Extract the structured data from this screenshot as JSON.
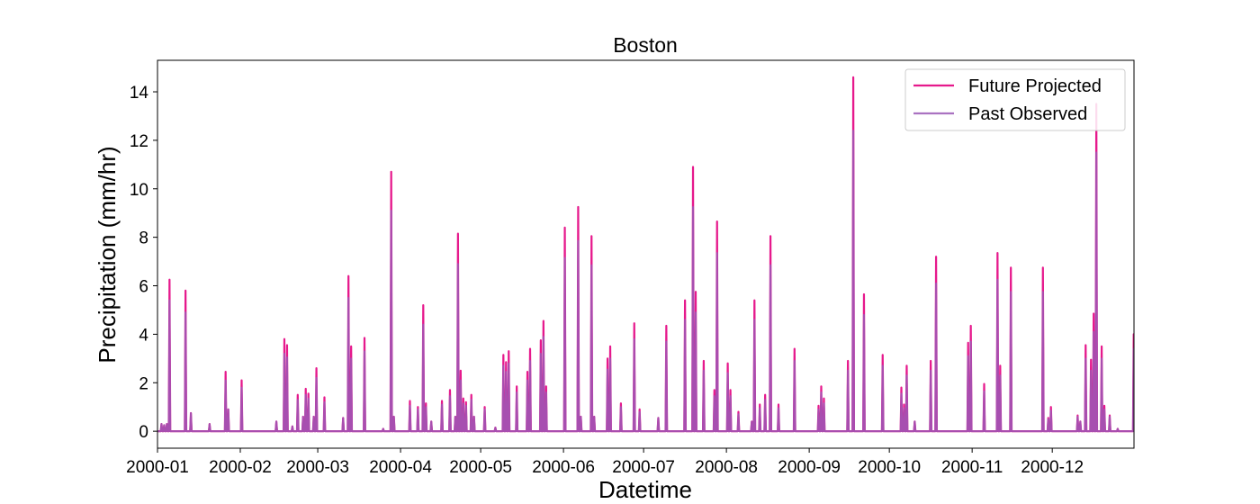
{
  "chart_data": {
    "type": "line",
    "title": "Boston",
    "xlabel": "Datetime",
    "ylabel": "Precipitation (mm/hr)",
    "x_ticks": [
      "2000-01",
      "2000-02",
      "2000-03",
      "2000-04",
      "2000-05",
      "2000-06",
      "2000-07",
      "2000-08",
      "2000-09",
      "2000-10",
      "2000-11",
      "2000-12"
    ],
    "xlim": [
      "2000-01-01",
      "2000-12-31"
    ],
    "y_ticks": [
      0,
      2,
      4,
      6,
      8,
      10,
      12,
      14
    ],
    "ylim": [
      -0.7,
      15.3
    ],
    "grid": false,
    "legend_position": "top-right",
    "series": [
      {
        "name": "Future Projected",
        "color": "#e6198c",
        "points": [
          [
            "2000-01-02",
            0.3
          ],
          [
            "2000-01-03",
            0.25
          ],
          [
            "2000-01-04",
            0.3
          ],
          [
            "2000-01-05",
            6.25
          ],
          [
            "2000-01-11",
            5.8
          ],
          [
            "2000-01-13",
            0.75
          ],
          [
            "2000-01-20",
            0.3
          ],
          [
            "2000-01-26",
            2.45
          ],
          [
            "2000-01-27",
            0.9
          ],
          [
            "2000-02-01",
            2.1
          ],
          [
            "2000-02-14",
            0.4
          ],
          [
            "2000-02-17",
            3.8
          ],
          [
            "2000-02-18",
            3.55
          ],
          [
            "2000-02-20",
            0.2
          ],
          [
            "2000-02-22",
            1.5
          ],
          [
            "2000-02-24",
            0.6
          ],
          [
            "2000-02-25",
            1.75
          ],
          [
            "2000-02-26",
            1.55
          ],
          [
            "2000-02-28",
            0.6
          ],
          [
            "2000-02-29",
            2.6
          ],
          [
            "2000-03-03",
            1.4
          ],
          [
            "2000-03-10",
            0.55
          ],
          [
            "2000-03-12",
            6.4
          ],
          [
            "2000-03-13",
            3.5
          ],
          [
            "2000-03-18",
            3.85
          ],
          [
            "2000-03-25",
            0.1
          ],
          [
            "2000-03-28",
            10.7
          ],
          [
            "2000-03-29",
            0.6
          ],
          [
            "2000-04-04",
            1.25
          ],
          [
            "2000-04-07",
            1.0
          ],
          [
            "2000-04-09",
            5.2
          ],
          [
            "2000-04-10",
            1.15
          ],
          [
            "2000-04-12",
            0.4
          ],
          [
            "2000-04-16",
            1.25
          ],
          [
            "2000-04-19",
            1.7
          ],
          [
            "2000-04-21",
            0.6
          ],
          [
            "2000-04-22",
            8.15
          ],
          [
            "2000-04-23",
            2.5
          ],
          [
            "2000-04-24",
            1.35
          ],
          [
            "2000-04-25",
            1.2
          ],
          [
            "2000-04-27",
            1.5
          ],
          [
            "2000-04-28",
            0.6
          ],
          [
            "2000-05-02",
            1.0
          ],
          [
            "2000-05-06",
            0.15
          ],
          [
            "2000-05-09",
            3.15
          ],
          [
            "2000-05-10",
            2.85
          ],
          [
            "2000-05-11",
            3.3
          ],
          [
            "2000-05-14",
            1.85
          ],
          [
            "2000-05-18",
            2.45
          ],
          [
            "2000-05-19",
            3.4
          ],
          [
            "2000-05-23",
            3.75
          ],
          [
            "2000-05-24",
            4.55
          ],
          [
            "2000-05-25",
            1.85
          ],
          [
            "2000-06-01",
            8.4
          ],
          [
            "2000-06-06",
            9.25
          ],
          [
            "2000-06-07",
            0.6
          ],
          [
            "2000-06-11",
            8.05
          ],
          [
            "2000-06-12",
            0.6
          ],
          [
            "2000-06-17",
            3.0
          ],
          [
            "2000-06-18",
            3.5
          ],
          [
            "2000-06-22",
            1.15
          ],
          [
            "2000-06-27",
            4.45
          ],
          [
            "2000-06-29",
            0.9
          ],
          [
            "2000-07-06",
            0.55
          ],
          [
            "2000-07-09",
            4.35
          ],
          [
            "2000-07-16",
            5.4
          ],
          [
            "2000-07-19",
            10.9
          ],
          [
            "2000-07-20",
            5.75
          ],
          [
            "2000-07-23",
            2.9
          ],
          [
            "2000-07-27",
            1.7
          ],
          [
            "2000-07-28",
            8.65
          ],
          [
            "2000-08-01",
            2.8
          ],
          [
            "2000-08-02",
            1.7
          ],
          [
            "2000-08-05",
            0.8
          ],
          [
            "2000-08-10",
            0.4
          ],
          [
            "2000-08-11",
            5.4
          ],
          [
            "2000-08-13",
            1.1
          ],
          [
            "2000-08-15",
            1.5
          ],
          [
            "2000-08-17",
            8.05
          ],
          [
            "2000-08-20",
            1.1
          ],
          [
            "2000-08-26",
            3.4
          ],
          [
            "2000-09-04",
            1.05
          ],
          [
            "2000-09-05",
            1.85
          ],
          [
            "2000-09-06",
            1.35
          ],
          [
            "2000-09-15",
            2.9
          ],
          [
            "2000-09-17",
            14.6
          ],
          [
            "2000-09-21",
            5.65
          ],
          [
            "2000-09-28",
            3.15
          ],
          [
            "2000-10-05",
            1.8
          ],
          [
            "2000-10-06",
            1.1
          ],
          [
            "2000-10-07",
            2.7
          ],
          [
            "2000-10-10",
            0.4
          ],
          [
            "2000-10-16",
            2.9
          ],
          [
            "2000-10-18",
            7.2
          ],
          [
            "2000-10-30",
            3.65
          ],
          [
            "2000-10-31",
            4.35
          ],
          [
            "2000-11-05",
            1.95
          ],
          [
            "2000-11-10",
            7.35
          ],
          [
            "2000-11-11",
            2.7
          ],
          [
            "2000-11-15",
            6.75
          ],
          [
            "2000-11-27",
            6.75
          ],
          [
            "2000-11-29",
            0.55
          ],
          [
            "2000-11-30",
            1.0
          ],
          [
            "2000-12-10",
            0.65
          ],
          [
            "2000-12-11",
            0.4
          ],
          [
            "2000-12-13",
            3.55
          ],
          [
            "2000-12-15",
            2.95
          ],
          [
            "2000-12-16",
            4.85
          ],
          [
            "2000-12-17",
            13.5
          ],
          [
            "2000-12-19",
            3.5
          ],
          [
            "2000-12-20",
            1.05
          ],
          [
            "2000-12-22",
            0.65
          ],
          [
            "2000-12-25",
            0.1
          ],
          [
            "2000-12-31",
            4.0
          ]
        ]
      },
      {
        "name": "Past Observed",
        "color": "#9b59b6",
        "points": [
          [
            "2000-01-02",
            0.3
          ],
          [
            "2000-01-03",
            0.25
          ],
          [
            "2000-01-04",
            0.3
          ],
          [
            "2000-01-05",
            5.4
          ],
          [
            "2000-01-11",
            4.9
          ],
          [
            "2000-01-13",
            0.75
          ],
          [
            "2000-01-20",
            0.3
          ],
          [
            "2000-01-26",
            2.1
          ],
          [
            "2000-01-27",
            0.9
          ],
          [
            "2000-02-01",
            1.8
          ],
          [
            "2000-02-14",
            0.4
          ],
          [
            "2000-02-17",
            3.2
          ],
          [
            "2000-02-18",
            3.05
          ],
          [
            "2000-02-20",
            0.2
          ],
          [
            "2000-02-22",
            1.3
          ],
          [
            "2000-02-24",
            0.6
          ],
          [
            "2000-02-25",
            1.5
          ],
          [
            "2000-02-26",
            1.35
          ],
          [
            "2000-02-28",
            0.6
          ],
          [
            "2000-02-29",
            2.2
          ],
          [
            "2000-03-03",
            1.2
          ],
          [
            "2000-03-10",
            0.55
          ],
          [
            "2000-03-12",
            5.5
          ],
          [
            "2000-03-13",
            3.0
          ],
          [
            "2000-03-18",
            3.3
          ],
          [
            "2000-03-25",
            0.1
          ],
          [
            "2000-03-28",
            9.1
          ],
          [
            "2000-03-29",
            0.6
          ],
          [
            "2000-04-04",
            1.05
          ],
          [
            "2000-04-07",
            0.9
          ],
          [
            "2000-04-09",
            4.4
          ],
          [
            "2000-04-10",
            1.0
          ],
          [
            "2000-04-12",
            0.4
          ],
          [
            "2000-04-16",
            1.1
          ],
          [
            "2000-04-19",
            1.45
          ],
          [
            "2000-04-21",
            0.6
          ],
          [
            "2000-04-22",
            6.9
          ],
          [
            "2000-04-23",
            2.1
          ],
          [
            "2000-04-24",
            1.15
          ],
          [
            "2000-04-25",
            1.05
          ],
          [
            "2000-04-27",
            1.3
          ],
          [
            "2000-04-28",
            0.6
          ],
          [
            "2000-05-02",
            0.9
          ],
          [
            "2000-05-06",
            0.15
          ],
          [
            "2000-05-09",
            2.7
          ],
          [
            "2000-05-10",
            2.45
          ],
          [
            "2000-05-11",
            2.8
          ],
          [
            "2000-05-14",
            1.6
          ],
          [
            "2000-05-18",
            2.1
          ],
          [
            "2000-05-19",
            2.9
          ],
          [
            "2000-05-23",
            3.2
          ],
          [
            "2000-05-24",
            3.9
          ],
          [
            "2000-05-25",
            1.6
          ],
          [
            "2000-06-01",
            7.15
          ],
          [
            "2000-06-06",
            7.85
          ],
          [
            "2000-06-07",
            0.6
          ],
          [
            "2000-06-11",
            6.85
          ],
          [
            "2000-06-12",
            0.6
          ],
          [
            "2000-06-17",
            2.55
          ],
          [
            "2000-06-18",
            3.0
          ],
          [
            "2000-06-22",
            1.0
          ],
          [
            "2000-06-27",
            3.8
          ],
          [
            "2000-06-29",
            0.8
          ],
          [
            "2000-07-06",
            0.55
          ],
          [
            "2000-07-09",
            3.7
          ],
          [
            "2000-07-16",
            4.6
          ],
          [
            "2000-07-19",
            9.25
          ],
          [
            "2000-07-20",
            4.9
          ],
          [
            "2000-07-23",
            2.5
          ],
          [
            "2000-07-27",
            1.45
          ],
          [
            "2000-07-28",
            7.35
          ],
          [
            "2000-08-01",
            2.4
          ],
          [
            "2000-08-02",
            1.45
          ],
          [
            "2000-08-05",
            0.7
          ],
          [
            "2000-08-10",
            0.4
          ],
          [
            "2000-08-11",
            4.6
          ],
          [
            "2000-08-13",
            0.95
          ],
          [
            "2000-08-15",
            1.3
          ],
          [
            "2000-08-17",
            6.85
          ],
          [
            "2000-08-20",
            0.95
          ],
          [
            "2000-08-26",
            2.9
          ],
          [
            "2000-09-04",
            0.9
          ],
          [
            "2000-09-05",
            1.6
          ],
          [
            "2000-09-06",
            1.15
          ],
          [
            "2000-09-15",
            2.5
          ],
          [
            "2000-09-17",
            12.4
          ],
          [
            "2000-09-21",
            4.8
          ],
          [
            "2000-09-28",
            2.7
          ],
          [
            "2000-10-05",
            1.55
          ],
          [
            "2000-10-06",
            0.95
          ],
          [
            "2000-10-07",
            2.3
          ],
          [
            "2000-10-10",
            0.4
          ],
          [
            "2000-10-16",
            2.5
          ],
          [
            "2000-10-18",
            6.1
          ],
          [
            "2000-10-30",
            3.1
          ],
          [
            "2000-10-31",
            3.7
          ],
          [
            "2000-11-05",
            1.65
          ],
          [
            "2000-11-10",
            6.25
          ],
          [
            "2000-11-11",
            2.3
          ],
          [
            "2000-11-15",
            5.75
          ],
          [
            "2000-11-27",
            5.75
          ],
          [
            "2000-11-29",
            0.5
          ],
          [
            "2000-11-30",
            0.85
          ],
          [
            "2000-12-10",
            0.6
          ],
          [
            "2000-12-11",
            0.4
          ],
          [
            "2000-12-13",
            3.0
          ],
          [
            "2000-12-15",
            2.5
          ],
          [
            "2000-12-16",
            4.1
          ],
          [
            "2000-12-17",
            11.5
          ],
          [
            "2000-12-19",
            3.0
          ],
          [
            "2000-12-20",
            0.9
          ],
          [
            "2000-12-22",
            0.6
          ],
          [
            "2000-12-25",
            0.1
          ],
          [
            "2000-12-31",
            3.4
          ]
        ]
      }
    ]
  }
}
